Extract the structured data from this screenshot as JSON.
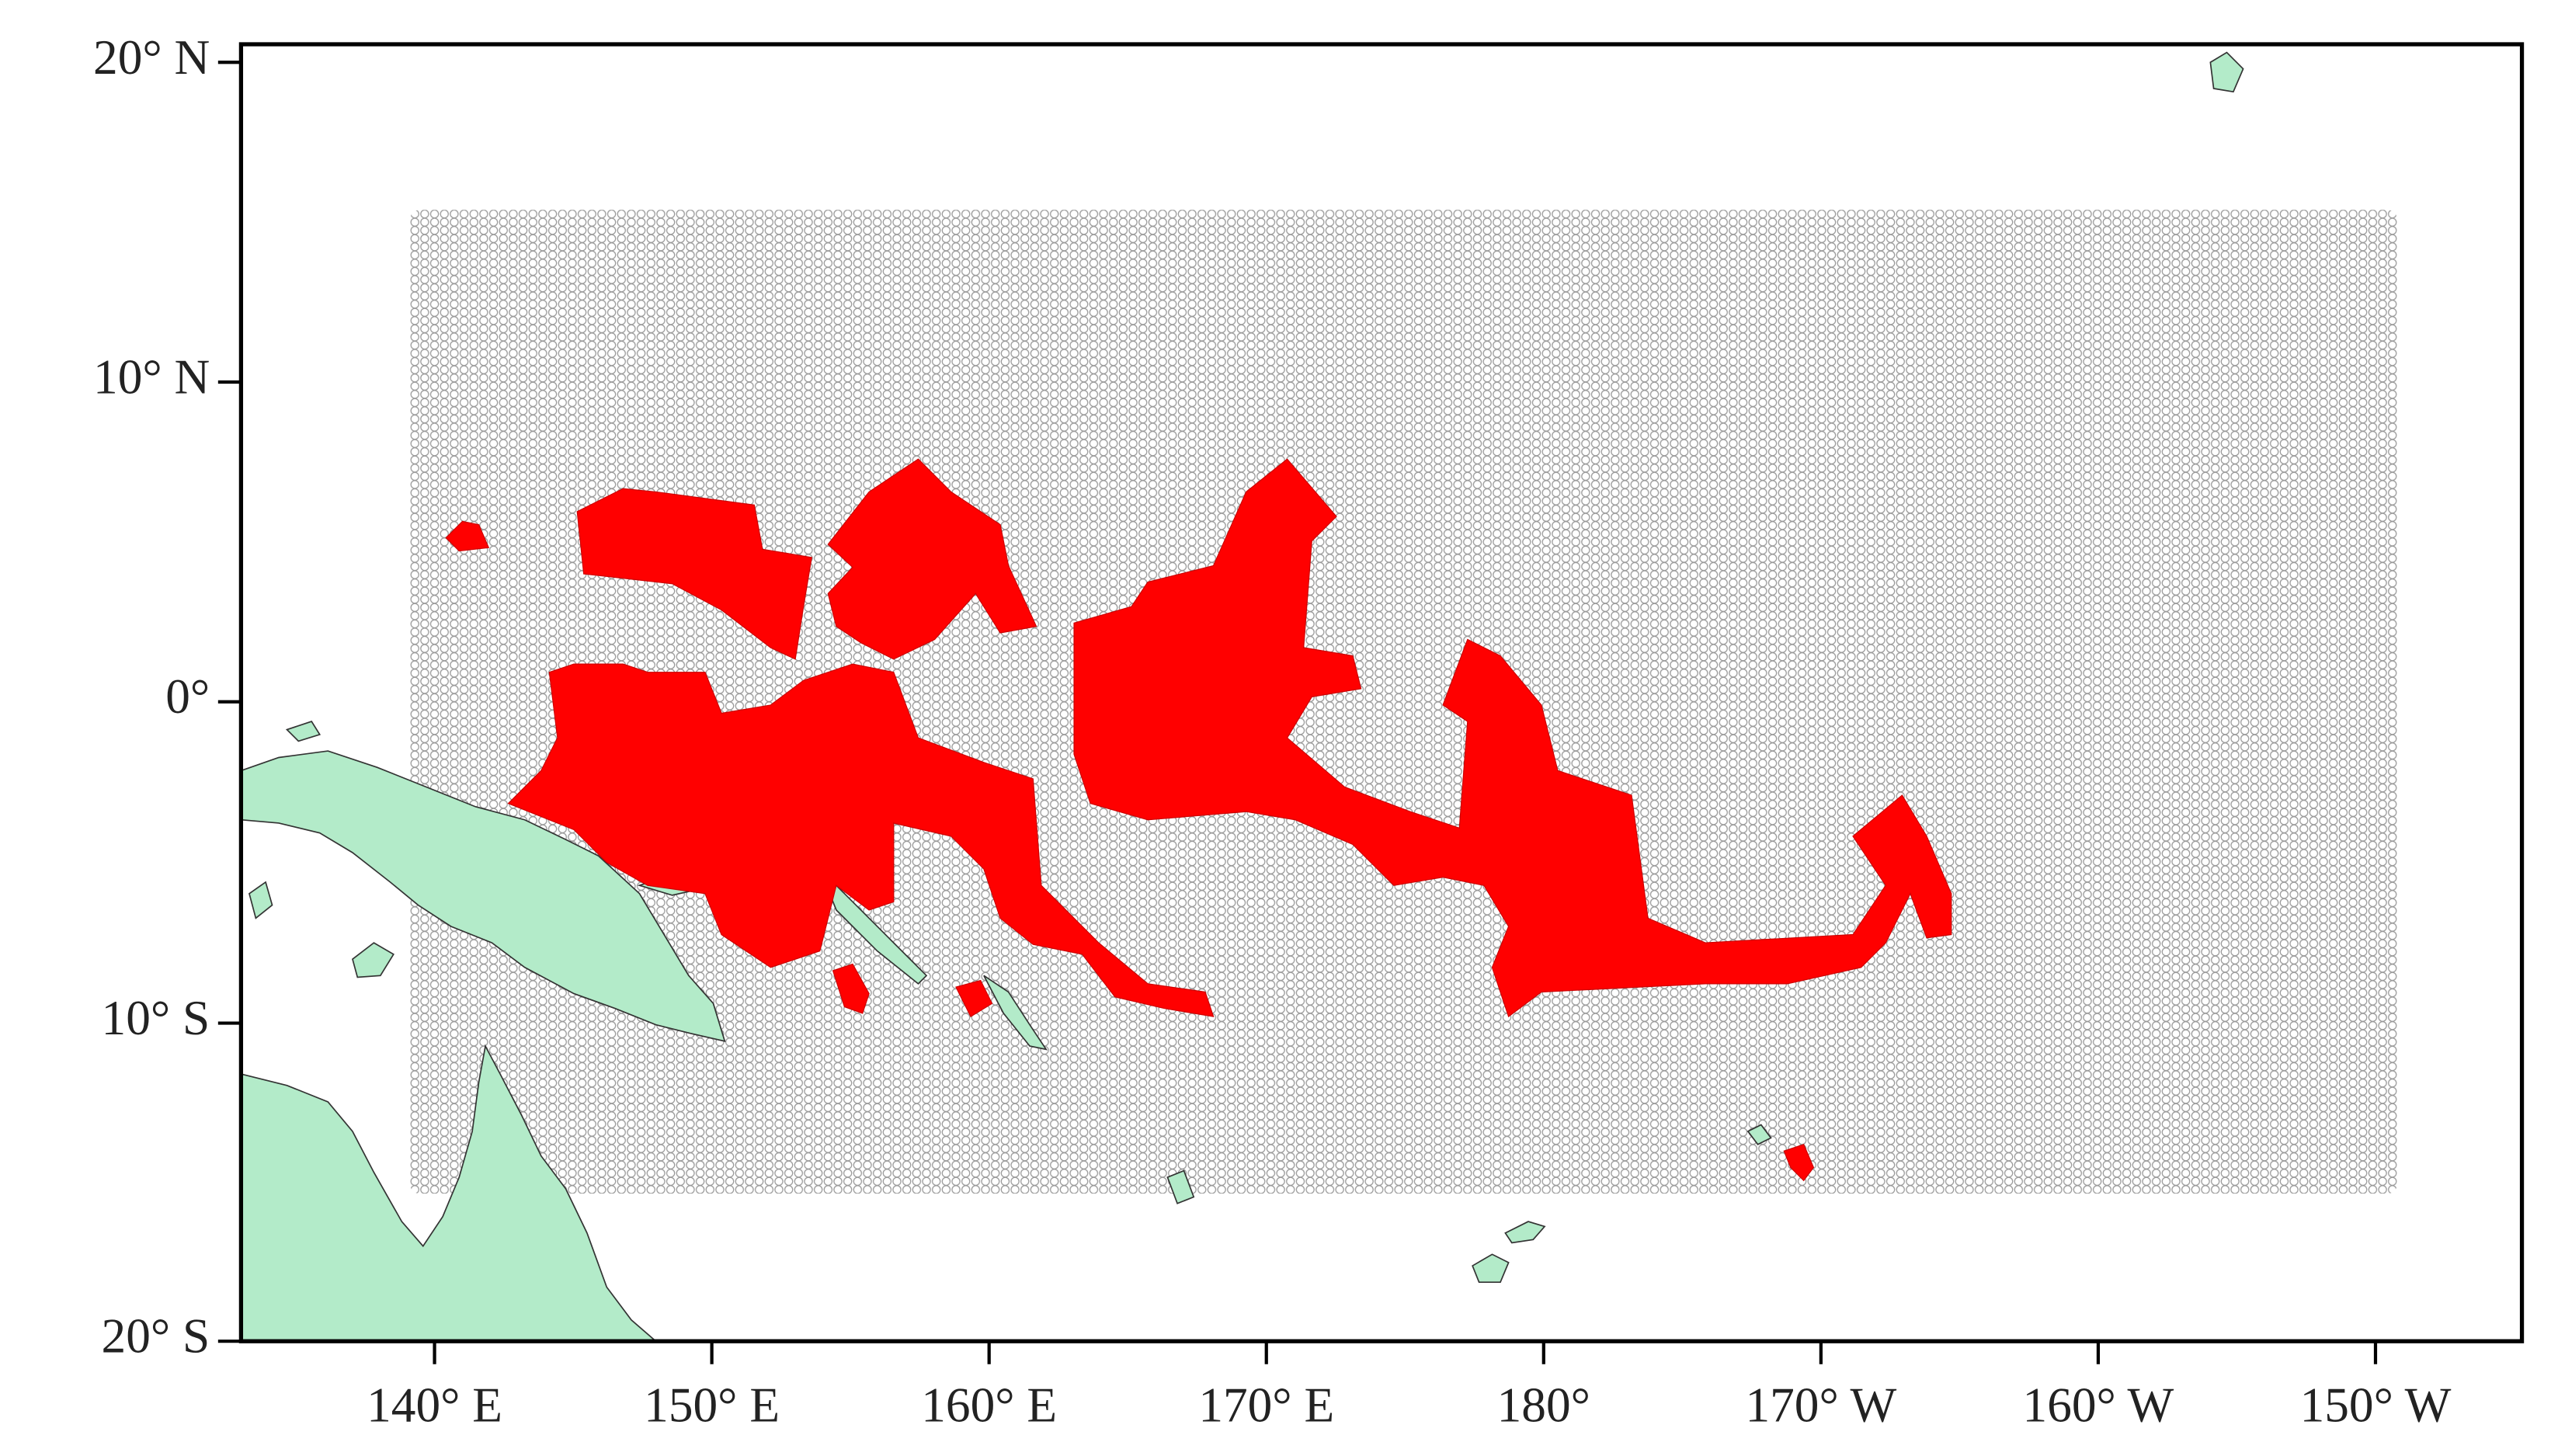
{
  "map": {
    "y_tick_labels": [
      "20° N",
      "10° N",
      "0°",
      "10° S",
      "20° S"
    ],
    "x_tick_labels": [
      "140° E",
      "150° E",
      "160° E",
      "170° E",
      "180°",
      "170° W",
      "160° W",
      "150° W"
    ]
  }
}
